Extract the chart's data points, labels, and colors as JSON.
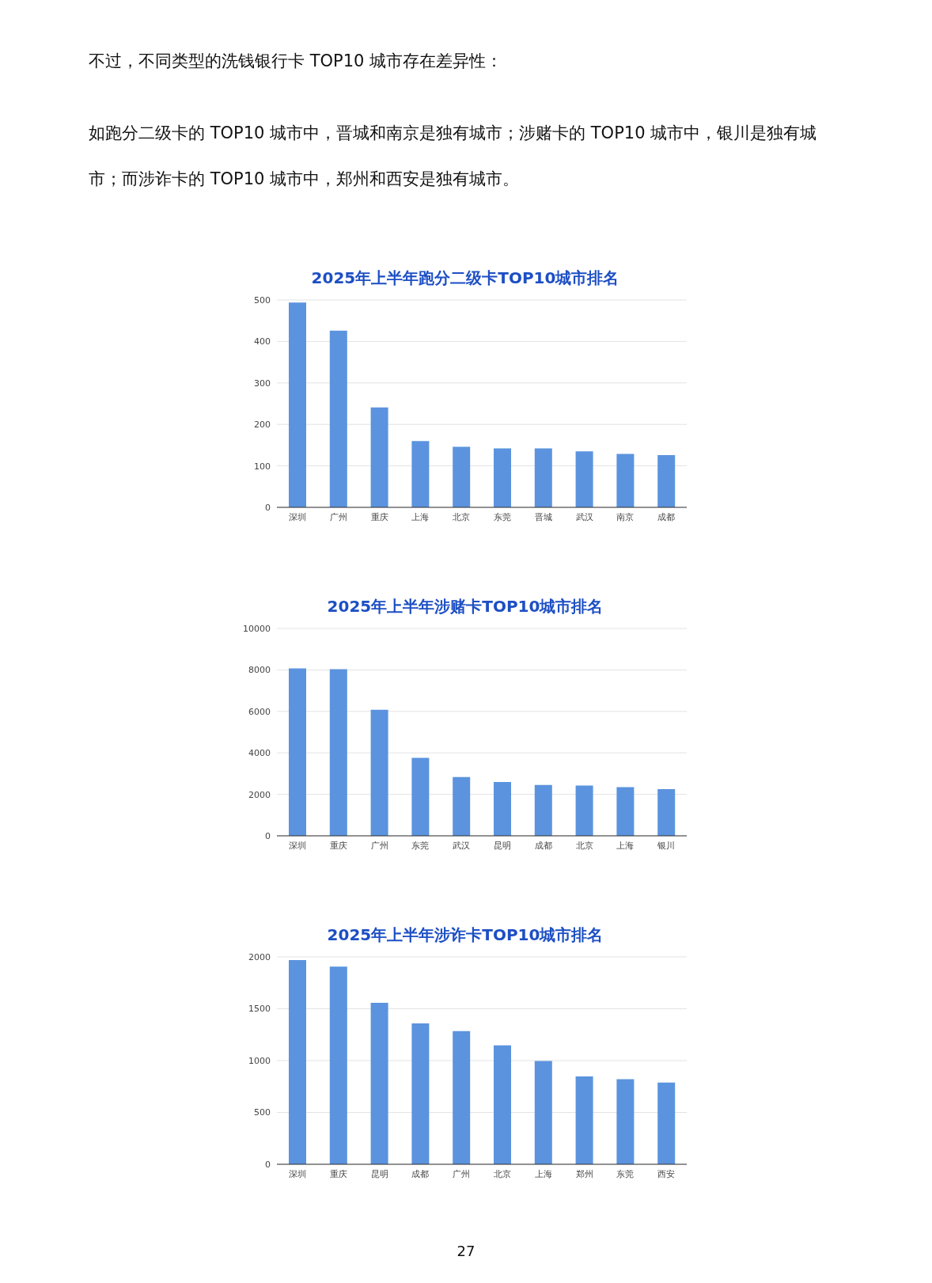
{
  "chart_data": [
    {
      "type": "bar",
      "title": "2025年上半年跑分二级卡TOP10城市排名",
      "annotations": [
        "不过，不同类型的洗钱银行卡 TOP10 城市存在差异性：",
        "如跑分二级卡的 TOP10 城市中，晋城和南京是独有城市；涉赌卡的 TOP10 城市中，银川是独有城市；而涉诈卡的 TOP10 城市中，郑州和西安是独有城市。"
      ],
      "categories": [
        "深圳",
        "广州",
        "重庆",
        "上海",
        "北京",
        "东莞",
        "晋城",
        "武汉",
        "南京",
        "成都"
      ],
      "values": [
        494,
        426,
        241,
        160,
        146,
        142,
        142,
        135,
        129,
        126
      ],
      "color": "#5b93de",
      "ylim": [
        0,
        500
      ],
      "yticks": [
        0,
        100,
        200,
        300,
        400,
        500
      ],
      "grid": "y"
    },
    {
      "type": "bar",
      "title": "2025年上半年涉赌卡TOP10城市排名",
      "categories": [
        "深圳",
        "重庆",
        "广州",
        "东莞",
        "武汉",
        "昆明",
        "成都",
        "北京",
        "上海",
        "银川"
      ],
      "values": [
        8070,
        8030,
        6080,
        3760,
        2830,
        2600,
        2450,
        2420,
        2350,
        2250
      ],
      "color": "#5b93de",
      "ylim": [
        0,
        10000
      ],
      "yticks": [
        0,
        2000,
        4000,
        6000,
        8000,
        10000
      ],
      "grid": "y"
    },
    {
      "type": "bar",
      "title": "2025年上半年涉诈卡TOP10城市排名",
      "annotations": [
        "27"
      ],
      "categories": [
        "深圳",
        "重庆",
        "昆明",
        "成都",
        "广州",
        "北京",
        "上海",
        "郑州",
        "东莞",
        "西安"
      ],
      "values": [
        1970,
        1907,
        1558,
        1358,
        1285,
        1146,
        997,
        848,
        820,
        789
      ],
      "color": "#5b93de",
      "ylim": [
        0,
        2000
      ],
      "yticks": [
        0,
        500,
        1000,
        1500,
        2000
      ],
      "grid": "y"
    }
  ]
}
